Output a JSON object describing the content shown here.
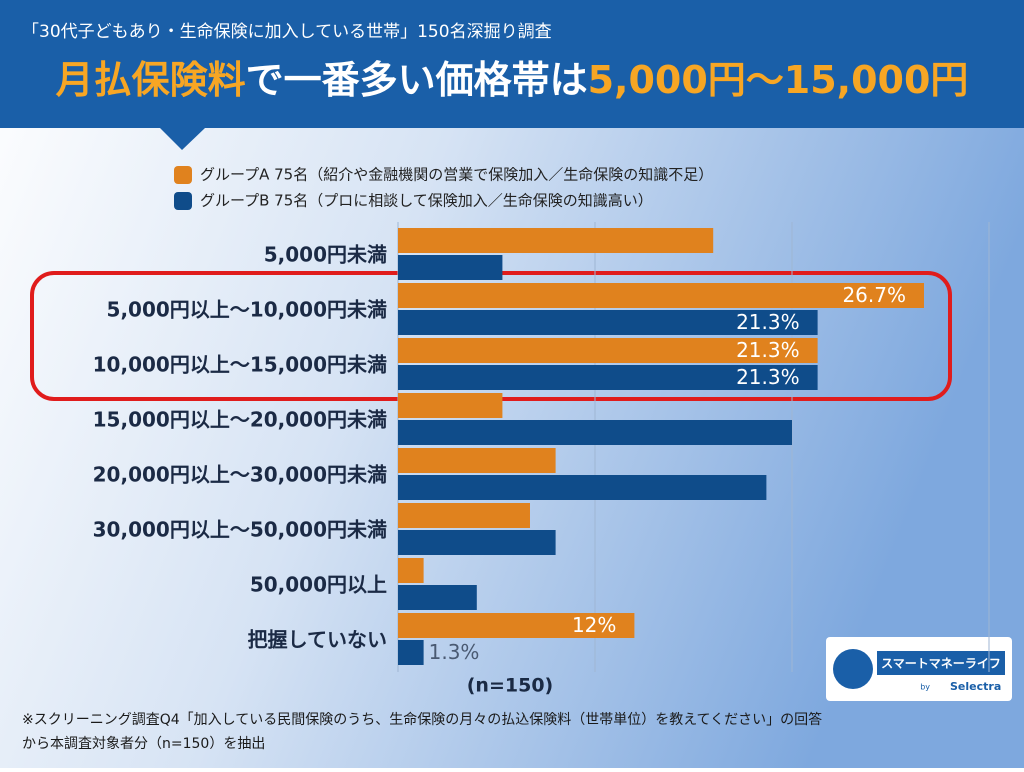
{
  "chart_data": {
    "type": "hbar",
    "subtitle": "「30代子どもあり・生命保険に加入している世帯」150名深掘り調査",
    "title_parts": [
      "月払保険料",
      "で一番多い価格帯は",
      "5,000円〜15,000円"
    ],
    "categories": [
      "5,000円未満",
      "5,000円以上〜10,000円未満",
      "10,000円以上〜15,000円未満",
      "15,000円以上〜20,000円未満",
      "20,000円以上〜30,000円未満",
      "30,000円以上〜50,000円未満",
      "50,000円以上",
      "把握していない"
    ],
    "series": [
      {
        "name": "グループA 75名（紹介や金融機関の営業で保険加入／生命保険の知識不足）",
        "color": "#e0821e",
        "values": [
          16.0,
          26.7,
          21.3,
          5.3,
          8.0,
          6.7,
          1.3,
          12
        ],
        "value_labels": [
          null,
          "26.7%",
          "21.3%",
          null,
          null,
          null,
          null,
          "12%"
        ]
      },
      {
        "name": "グループB 75名（プロに相談して保険加入／生命保険の知識高い）",
        "color": "#0f4c8a",
        "values": [
          5.3,
          21.3,
          21.3,
          20.0,
          18.7,
          8.0,
          4.0,
          1.3
        ],
        "value_labels": [
          null,
          "21.3%",
          "21.3%",
          null,
          null,
          null,
          null,
          "1.3%"
        ]
      }
    ],
    "xlim": [
      0,
      30
    ],
    "xticks": [
      0,
      10,
      20,
      30
    ],
    "grid": true,
    "n_label": "(n=150)",
    "footnote": [
      "※スクリーニング調査Q4「加入している民間保険のうち、生命保険の月々の払込保険料（世帯単位）を教えてください」の回答",
      "から本調査対象者分（n=150）を抽出"
    ],
    "logo": {
      "name": "スマートマネーライフ",
      "by": "by",
      "brand": "Selectra"
    }
  }
}
